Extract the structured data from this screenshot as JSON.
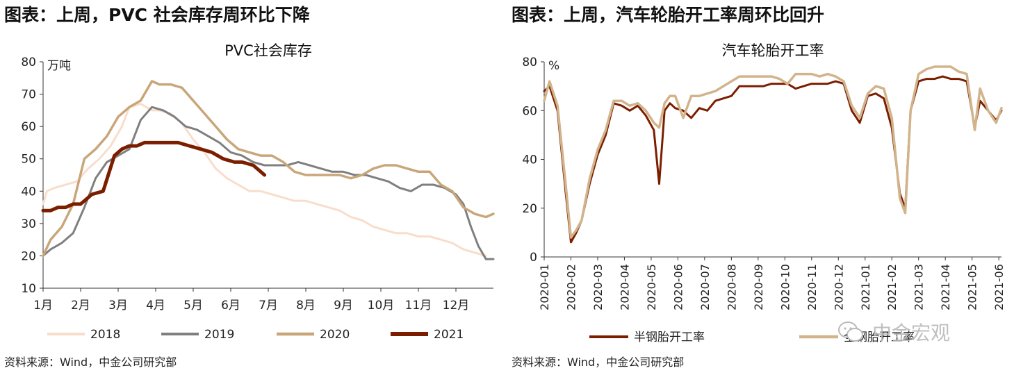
{
  "left": {
    "heading": "图表：上周，PVC 社会库存周环比下降",
    "source": "资料来源：Wind，中金公司研究部"
  },
  "right": {
    "heading": "图表：上周，汽车轮胎开工率周环比回升",
    "source": "资料来源：Wind，中金公司研究部"
  },
  "watermark": {
    "text": "中金宏观",
    "icon": "wechat-icon"
  },
  "chart_data": [
    {
      "type": "line",
      "title": "PVC社会库存",
      "ylabel": "万吨",
      "ylim": [
        10,
        80
      ],
      "yticks": [
        10,
        20,
        30,
        40,
        50,
        60,
        70,
        80
      ],
      "x_domain": [
        0,
        12
      ],
      "x_ticks": [
        0,
        1,
        2,
        3,
        4,
        5,
        6,
        7,
        8,
        9,
        10,
        11
      ],
      "categories": [
        "1月",
        "2月",
        "3月",
        "4月",
        "5月",
        "6月",
        "7月",
        "8月",
        "9月",
        "10月",
        "11月",
        "12月"
      ],
      "grid": false,
      "legend": "bottom",
      "series": [
        {
          "name": "2018",
          "color": "#F9DDCB",
          "width": 3,
          "x": [
            0,
            0.1,
            0.3,
            0.6,
            0.9,
            1.2,
            1.5,
            1.8,
            2.1,
            2.3,
            2.6,
            2.9,
            3.1,
            3.4,
            3.7,
            4.0,
            4.3,
            4.6,
            4.9,
            5.2,
            5.5,
            5.8,
            6.1,
            6.4,
            6.7,
            7.0,
            7.3,
            7.6,
            7.9,
            8.2,
            8.5,
            8.8,
            9.1,
            9.4,
            9.7,
            10.0,
            10.3,
            10.6,
            10.9,
            11.2,
            11.5,
            11.8
          ],
          "values": [
            36,
            40,
            41,
            42,
            43,
            47,
            50,
            54,
            60,
            66,
            67,
            65,
            65,
            64,
            61,
            56,
            52,
            47,
            44,
            42,
            40,
            40,
            39,
            38,
            37,
            37,
            36,
            35,
            34,
            32,
            31,
            29,
            28,
            27,
            27,
            26,
            26,
            25,
            24,
            22,
            21,
            20
          ]
        },
        {
          "name": "2019",
          "color": "#7F7F7F",
          "width": 3,
          "x": [
            0,
            0.2,
            0.5,
            0.8,
            1.1,
            1.4,
            1.7,
            2.0,
            2.3,
            2.6,
            2.9,
            3.2,
            3.5,
            3.8,
            4.1,
            4.4,
            4.7,
            5.0,
            5.3,
            5.6,
            5.9,
            6.2,
            6.5,
            6.8,
            7.1,
            7.4,
            7.7,
            8.0,
            8.3,
            8.6,
            8.9,
            9.2,
            9.5,
            9.8,
            10.1,
            10.4,
            10.7,
            11.0,
            11.2,
            11.4,
            11.6,
            11.8,
            12.0
          ],
          "values": [
            20,
            22,
            24,
            27,
            35,
            44,
            49,
            51,
            53,
            62,
            66,
            65,
            63,
            60,
            59,
            57,
            55,
            52,
            51,
            49,
            48,
            48,
            48,
            49,
            48,
            47,
            46,
            46,
            45,
            45,
            44,
            43,
            41,
            40,
            42,
            42,
            41,
            39,
            36,
            29,
            23,
            19,
            19
          ]
        },
        {
          "name": "2020",
          "color": "#C9A67A",
          "width": 3.5,
          "x": [
            0,
            0.2,
            0.5,
            0.8,
            1.1,
            1.4,
            1.7,
            2.0,
            2.3,
            2.6,
            2.9,
            3.1,
            3.4,
            3.7,
            4.0,
            4.3,
            4.6,
            4.9,
            5.2,
            5.5,
            5.8,
            6.1,
            6.4,
            6.7,
            7.0,
            7.3,
            7.6,
            7.9,
            8.2,
            8.5,
            8.8,
            9.1,
            9.4,
            9.7,
            10.0,
            10.3,
            10.6,
            10.9,
            11.2,
            11.5,
            11.8,
            12.0
          ],
          "values": [
            20,
            25,
            29,
            36,
            50,
            53,
            57,
            63,
            66,
            68,
            74,
            73,
            73,
            72,
            68,
            64,
            60,
            56,
            53,
            52,
            51,
            51,
            49,
            46,
            45,
            45,
            45,
            45,
            44,
            45,
            47,
            48,
            48,
            47,
            46,
            46,
            42,
            40,
            35,
            33,
            32,
            33
          ]
        },
        {
          "name": "2021",
          "color": "#7B1E00",
          "width": 5,
          "x": [
            0,
            0.2,
            0.4,
            0.6,
            0.8,
            1.0,
            1.3,
            1.6,
            1.9,
            2.1,
            2.3,
            2.5,
            2.7,
            3.0,
            3.3,
            3.6,
            3.9,
            4.2,
            4.5,
            4.8,
            5.1,
            5.3,
            5.6,
            5.9
          ],
          "values": [
            34,
            34,
            35,
            35,
            36,
            36,
            39,
            40,
            51,
            53,
            54,
            54,
            55,
            55,
            55,
            55,
            54,
            53,
            52,
            50,
            49,
            49,
            48,
            45
          ]
        }
      ]
    },
    {
      "type": "line",
      "title": "汽车轮胎开工率",
      "ylabel": "%",
      "ylim": [
        0,
        80
      ],
      "yticks": [
        0,
        20,
        40,
        60,
        80
      ],
      "x_domain": [
        0,
        17.1
      ],
      "x_ticks": [
        0,
        1,
        2,
        3,
        4,
        5,
        6,
        7,
        8,
        9,
        10,
        11,
        12,
        13,
        14,
        15,
        16,
        17
      ],
      "categories": [
        "2020-01",
        "2020-02",
        "2020-03",
        "2020-04",
        "2020-05",
        "2020-06",
        "2020-07",
        "2020-08",
        "2020-09",
        "2020-10",
        "2020-11",
        "2020-12",
        "2021-01",
        "2021-02",
        "2021-03",
        "2021-04",
        "2021-05",
        "2021-06"
      ],
      "grid": false,
      "legend": "bottom",
      "series": [
        {
          "name": "半钢胎开工率",
          "color": "#7B1E00",
          "width": 3,
          "x": [
            0,
            0.2,
            0.5,
            0.8,
            1.0,
            1.2,
            1.4,
            1.7,
            2.0,
            2.3,
            2.6,
            2.9,
            3.2,
            3.5,
            3.8,
            4.1,
            4.3,
            4.5,
            4.7,
            4.9,
            5.2,
            5.5,
            5.8,
            6.1,
            6.4,
            6.7,
            7.0,
            7.3,
            7.6,
            7.9,
            8.2,
            8.5,
            8.8,
            9.1,
            9.4,
            9.7,
            10.0,
            10.3,
            10.6,
            10.9,
            11.2,
            11.5,
            11.8,
            12.1,
            12.4,
            12.7,
            13.0,
            13.3,
            13.5,
            13.7,
            14.0,
            14.3,
            14.6,
            14.9,
            15.2,
            15.5,
            15.8,
            16.1,
            16.3,
            16.6,
            16.9,
            17.1
          ],
          "values": [
            68,
            70,
            60,
            27,
            6,
            10,
            15,
            30,
            42,
            50,
            63,
            62,
            60,
            62,
            58,
            52,
            30,
            60,
            63,
            61,
            60,
            57,
            61,
            60,
            64,
            65,
            66,
            70,
            70,
            70,
            70,
            71,
            71,
            71,
            69,
            70,
            71,
            71,
            71,
            72,
            71,
            60,
            55,
            66,
            67,
            65,
            53,
            26,
            20,
            60,
            72,
            73,
            73,
            74,
            73,
            73,
            72,
            53,
            64,
            60,
            56,
            60
          ]
        },
        {
          "name": "全钢胎开工率",
          "color": "#D2B48C",
          "width": 3.5,
          "x": [
            0,
            0.2,
            0.5,
            0.8,
            1.0,
            1.2,
            1.4,
            1.7,
            2.0,
            2.3,
            2.6,
            2.9,
            3.2,
            3.5,
            3.8,
            4.1,
            4.3,
            4.5,
            4.7,
            4.9,
            5.2,
            5.5,
            5.8,
            6.1,
            6.4,
            6.7,
            7.0,
            7.3,
            7.6,
            7.9,
            8.2,
            8.5,
            8.8,
            9.1,
            9.4,
            9.7,
            10.0,
            10.3,
            10.6,
            10.9,
            11.2,
            11.5,
            11.8,
            12.1,
            12.4,
            12.7,
            13.0,
            13.3,
            13.5,
            13.7,
            14.0,
            14.3,
            14.6,
            14.9,
            15.2,
            15.5,
            15.8,
            16.1,
            16.3,
            16.6,
            16.9,
            17.1
          ],
          "values": [
            64,
            72,
            62,
            30,
            8,
            11,
            15,
            32,
            44,
            52,
            64,
            64,
            62,
            63,
            60,
            55,
            53,
            63,
            66,
            66,
            57,
            66,
            66,
            67,
            68,
            70,
            72,
            74,
            74,
            74,
            74,
            74,
            73,
            71,
            75,
            75,
            75,
            74,
            75,
            74,
            72,
            62,
            57,
            67,
            70,
            69,
            57,
            24,
            18,
            60,
            75,
            77,
            78,
            78,
            78,
            76,
            75,
            52,
            69,
            60,
            55,
            61
          ]
        }
      ]
    }
  ]
}
